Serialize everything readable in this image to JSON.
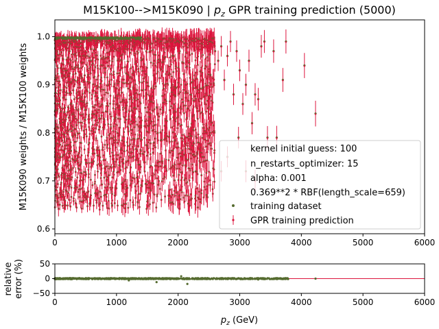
{
  "colors": {
    "training": "#556b2f",
    "prediction": "#dc143c",
    "axis": "#000000",
    "zero_line": "#dc143c"
  },
  "chart_data": [
    {
      "type": "scatter",
      "panel": "main",
      "title_main": "M15K100-->M15K090 | ",
      "title_var": "p",
      "title_sub": "z",
      "title_rest": " GPR training prediction (5000)",
      "ylabel": "M15K090 weights / M15K100 weights",
      "xlim": [
        0,
        6000
      ],
      "ylim": [
        0.59,
        1.035
      ],
      "xticks": [
        "0",
        "1000",
        "2000",
        "3000",
        "4000",
        "5000",
        "6000"
      ],
      "xtick_values": [
        0,
        1000,
        2000,
        3000,
        4000,
        5000,
        6000
      ],
      "yticks": [
        "0.6",
        "0.7",
        "0.8",
        "0.9",
        "1.0"
      ],
      "ytick_values": [
        0.6,
        0.7,
        0.8,
        0.9,
        1.0
      ],
      "grid": false,
      "legend_position": "lower-right",
      "legend": [
        "kernel initial guess: 100",
        "n_restarts_optimizer: 15",
        "alpha: 0.001",
        "0.369**2 * RBF(length_scale=659)",
        "training dataset",
        "GPR training prediction"
      ],
      "series": [
        {
          "name": "training dataset",
          "marker": "dot",
          "points_isolated": [
            [
              2600,
              0.97
            ],
            [
              2650,
              0.95
            ],
            [
              2700,
              0.98
            ],
            [
              2750,
              0.91
            ],
            [
              2800,
              0.96
            ],
            [
              2850,
              0.99
            ],
            [
              2900,
              0.88
            ],
            [
              2950,
              0.97
            ],
            [
              3000,
              0.93
            ],
            [
              3050,
              0.86
            ],
            [
              3100,
              0.9
            ],
            [
              3150,
              0.95
            ],
            [
              3200,
              0.82
            ],
            [
              3250,
              0.88
            ],
            [
              3300,
              0.87
            ],
            [
              3350,
              0.98
            ],
            [
              3400,
              0.99
            ],
            [
              3450,
              0.79
            ],
            [
              3550,
              0.97
            ],
            [
              3600,
              0.79
            ],
            [
              3700,
              0.91
            ],
            [
              3750,
              0.99
            ],
            [
              4050,
              0.94
            ],
            [
              4230,
              0.84
            ],
            [
              2980,
              0.79
            ],
            [
              3250,
              0.7
            ],
            [
              2700,
              0.72
            ],
            [
              2800,
              0.75
            ],
            [
              3100,
              0.72
            ]
          ]
        },
        {
          "name": "GPR training prediction",
          "marker": "errorbar",
          "points_isolated": [
            [
              2600,
              0.97
            ],
            [
              2650,
              0.95
            ],
            [
              2700,
              0.98
            ],
            [
              2750,
              0.91
            ],
            [
              2800,
              0.96
            ],
            [
              2850,
              0.99
            ],
            [
              2900,
              0.88
            ],
            [
              2950,
              0.97
            ],
            [
              3000,
              0.93
            ],
            [
              3050,
              0.86
            ],
            [
              3100,
              0.9
            ],
            [
              3150,
              0.95
            ],
            [
              3200,
              0.82
            ],
            [
              3250,
              0.88
            ],
            [
              3300,
              0.87
            ],
            [
              3350,
              0.98
            ],
            [
              3400,
              0.99
            ],
            [
              3450,
              0.79
            ],
            [
              3550,
              0.97
            ],
            [
              3600,
              0.79
            ],
            [
              3700,
              0.91
            ],
            [
              3750,
              0.99
            ],
            [
              4050,
              0.94
            ],
            [
              4230,
              0.84
            ],
            [
              2980,
              0.79
            ],
            [
              3250,
              0.7
            ],
            [
              2700,
              0.72
            ],
            [
              2800,
              0.75
            ],
            [
              3100,
              0.72
            ]
          ],
          "dense_region": {
            "x_range": [
              0,
              2600
            ],
            "y_range": [
              0.64,
              1.0
            ]
          }
        }
      ]
    },
    {
      "type": "scatter",
      "panel": "ratio",
      "ylabel_line1": "relative",
      "ylabel_line2": "error (%)",
      "xlabel_var": "p",
      "xlabel_sub": "z",
      "xlabel_unit": " (GeV)",
      "xlim": [
        0,
        6000
      ],
      "ylim": [
        -50,
        50
      ],
      "xticks": [
        "0",
        "1000",
        "2000",
        "3000",
        "4000",
        "5000",
        "6000"
      ],
      "xtick_values": [
        0,
        1000,
        2000,
        3000,
        4000,
        5000,
        6000
      ],
      "yticks": [
        "50",
        "0",
        "−50"
      ],
      "ytick_values": [
        50,
        0,
        -50
      ],
      "reference_line": 0,
      "outliers": [
        [
          1650,
          -12
        ],
        [
          2150,
          -18
        ],
        [
          2050,
          8
        ],
        [
          1200,
          -6
        ],
        [
          3300,
          -3
        ],
        [
          4230,
          0
        ]
      ]
    }
  ]
}
